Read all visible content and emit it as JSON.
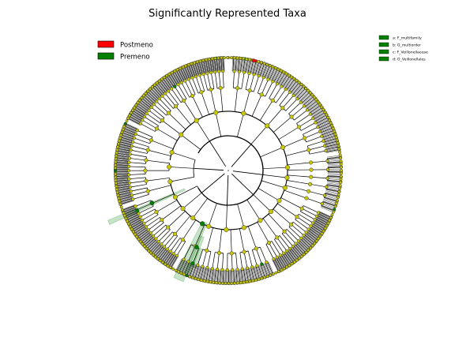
{
  "chart_data": {
    "type": "cladogram",
    "title": "Significantly Represented Taxa",
    "legend": [
      {
        "label": "Postmeno",
        "color": "#ff0000"
      },
      {
        "label": "Premeno",
        "color": "#008000"
      }
    ],
    "side_legend": [
      {
        "key": "a",
        "label": "a: F_multifamily",
        "color": "#008000"
      },
      {
        "key": "b",
        "label": "b: O_multiorder",
        "color": "#008000"
      },
      {
        "key": "c",
        "label": "c: F_Veillonellaceae",
        "color": "#008000"
      },
      {
        "key": "d",
        "label": "d: O_Veillonellales",
        "color": "#008000"
      }
    ],
    "highlighted_clades": [
      {
        "key": "a",
        "group": "Premeno"
      },
      {
        "key": "b",
        "group": "Premeno"
      },
      {
        "key": "c",
        "group": "Premeno"
      },
      {
        "key": "d",
        "group": "Premeno"
      }
    ],
    "node_colors": {
      "neutral": "#c8c800",
      "postmeno": "#ff0000",
      "premeno": "#008000"
    }
  }
}
